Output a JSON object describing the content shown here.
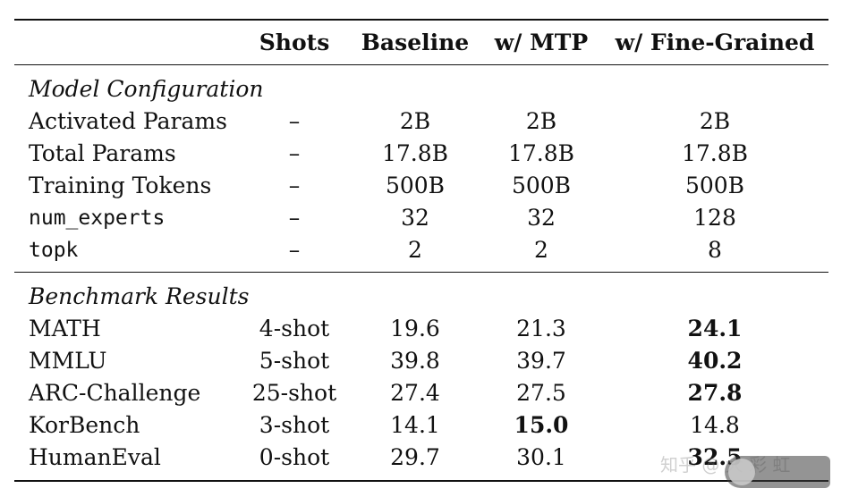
{
  "columns": [
    "",
    "Shots",
    "Baseline",
    "w/ MTP",
    "w/ Fine-Grained"
  ],
  "sections": [
    {
      "title": "Model Configuration",
      "rows": [
        {
          "label": "Activated Params",
          "mono": false,
          "cells": [
            "–",
            "2B",
            "2B",
            "2B"
          ],
          "bold": []
        },
        {
          "label": "Total Params",
          "mono": false,
          "cells": [
            "–",
            "17.8B",
            "17.8B",
            "17.8B"
          ],
          "bold": []
        },
        {
          "label": "Training Tokens",
          "mono": false,
          "cells": [
            "–",
            "500B",
            "500B",
            "500B"
          ],
          "bold": []
        },
        {
          "label": "num_experts",
          "mono": true,
          "cells": [
            "–",
            "32",
            "32",
            "128"
          ],
          "bold": []
        },
        {
          "label": "topk",
          "mono": true,
          "cells": [
            "–",
            "2",
            "2",
            "8"
          ],
          "bold": []
        }
      ]
    },
    {
      "title": "Benchmark Results",
      "rows": [
        {
          "label": "MATH",
          "mono": false,
          "cells": [
            "4-shot",
            "19.6",
            "21.3",
            "24.1"
          ],
          "bold": [
            3
          ]
        },
        {
          "label": "MMLU",
          "mono": false,
          "cells": [
            "5-shot",
            "39.8",
            "39.7",
            "40.2"
          ],
          "bold": [
            3
          ]
        },
        {
          "label": "ARC-Challenge",
          "mono": false,
          "cells": [
            "25-shot",
            "27.4",
            "27.5",
            "27.8"
          ],
          "bold": [
            3
          ]
        },
        {
          "label": "KorBench",
          "mono": false,
          "cells": [
            "3-shot",
            "14.1",
            "15.0",
            "14.8"
          ],
          "bold": [
            2
          ]
        },
        {
          "label": "HumanEval",
          "mono": false,
          "cells": [
            "0-shot",
            "29.7",
            "30.1",
            "32.5"
          ],
          "bold": [
            3
          ]
        }
      ]
    }
  ],
  "watermark": {
    "text": "知乎 @ 大 彩 虹"
  }
}
